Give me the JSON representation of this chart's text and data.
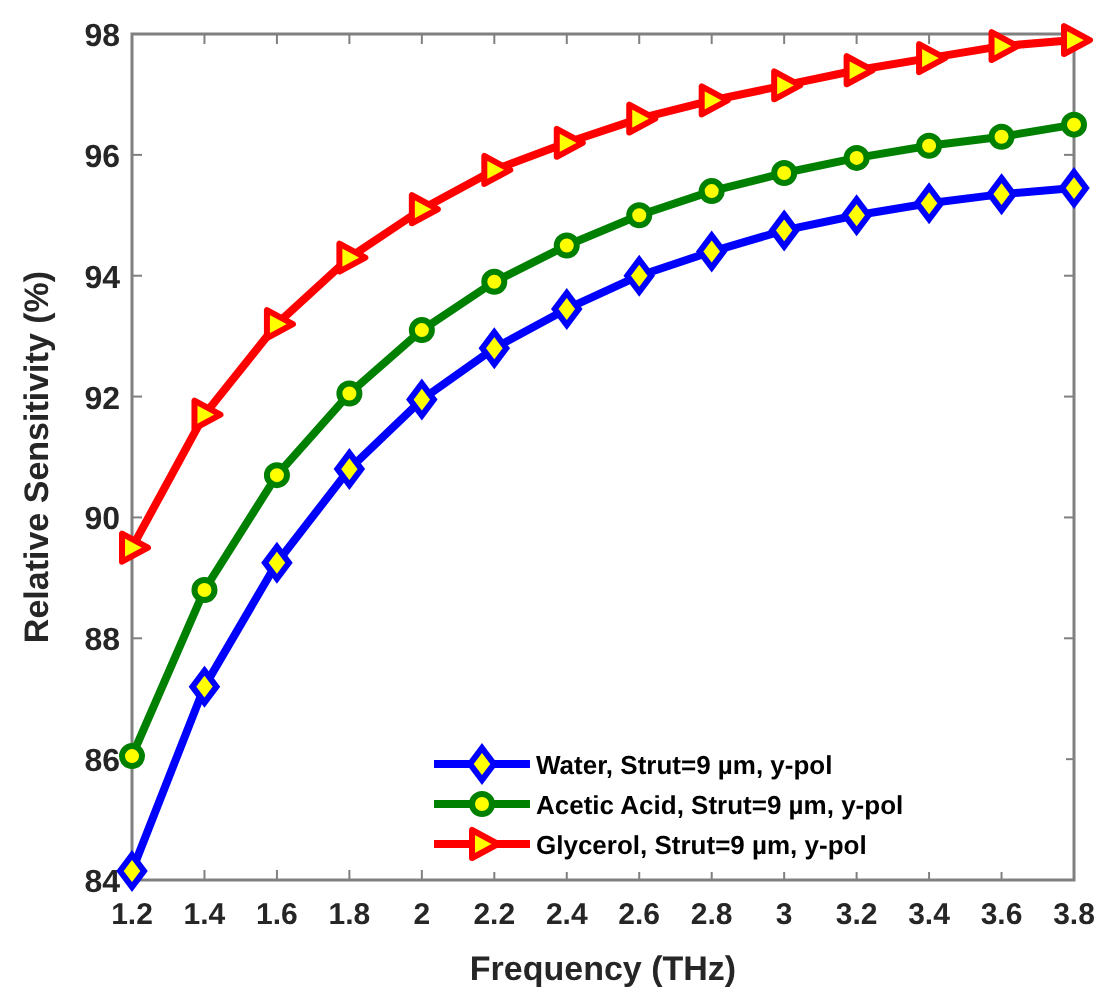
{
  "chart_data": {
    "type": "line",
    "xlabel": "Frequency (THz)",
    "ylabel": "Relative Sensitivity (%)",
    "x": [
      1.2,
      1.4,
      1.6,
      1.8,
      2,
      2.2,
      2.4,
      2.6,
      2.8,
      3,
      3.2,
      3.4,
      3.6,
      3.8
    ],
    "xlim": [
      1.2,
      3.8
    ],
    "xticks": [
      1.2,
      1.4,
      1.6,
      1.8,
      2,
      2.2,
      2.4,
      2.6,
      2.8,
      3,
      3.2,
      3.4,
      3.6,
      3.8
    ],
    "ylim": [
      84,
      98
    ],
    "yticks": [
      84,
      86,
      88,
      90,
      92,
      94,
      96,
      98
    ],
    "grid": false,
    "legend": "bottom right",
    "line_style": "solid",
    "series": [
      {
        "name": "Water, Strut=9 µm, y-pol",
        "color": "#0000ff",
        "marker": "diamond",
        "values": [
          84.15,
          87.2,
          89.25,
          90.8,
          91.95,
          92.8,
          93.45,
          94.0,
          94.4,
          94.75,
          95.0,
          95.2,
          95.35,
          95.45
        ]
      },
      {
        "name": "Acetic Acid, Strut=9 µm, y-pol",
        "color": "#008000",
        "marker": "circle",
        "values": [
          86.05,
          88.8,
          90.7,
          92.05,
          93.1,
          93.9,
          94.5,
          95.0,
          95.4,
          95.7,
          95.95,
          96.15,
          96.3,
          96.5
        ]
      },
      {
        "name": "Glycerol, Strut=9 µm, y-pol",
        "color": "#ff0000",
        "marker": "triangle",
        "values": [
          89.5,
          91.7,
          93.2,
          94.3,
          95.1,
          95.75,
          96.2,
          96.6,
          96.9,
          97.15,
          97.4,
          97.6,
          97.8,
          97.9
        ]
      }
    ]
  }
}
